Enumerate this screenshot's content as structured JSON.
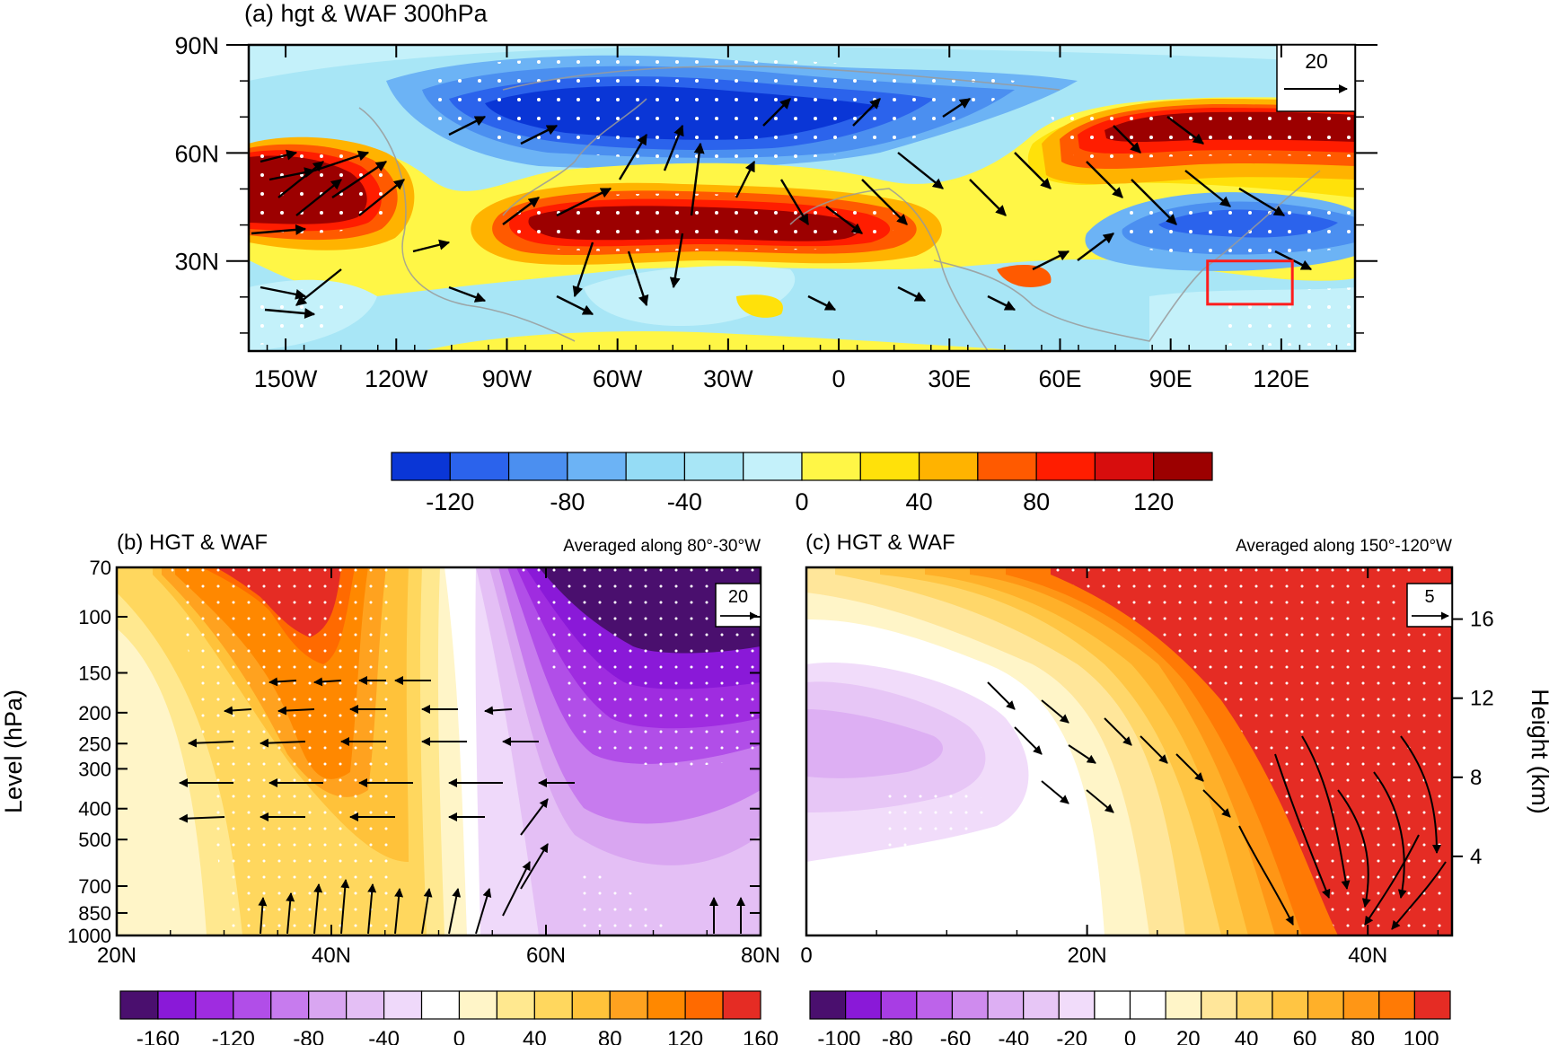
{
  "chart_data": [
    {
      "type": "heatmap",
      "panel": "a",
      "title": "(a) hgt & WAF 300hPa",
      "x_ticks": [
        "150W",
        "120W",
        "90W",
        "60W",
        "30W",
        "0",
        "30E",
        "60E",
        "90E",
        "120E"
      ],
      "x_values": [
        -150,
        -120,
        -90,
        -60,
        -30,
        0,
        30,
        60,
        90,
        120
      ],
      "xlim": [
        -160,
        140
      ],
      "y_ticks": [
        "90N",
        "60N",
        "30N"
      ],
      "y_values": [
        90,
        60,
        30
      ],
      "ylim": [
        5,
        90
      ],
      "vector_reference": "20",
      "colorbar": {
        "ticks": [
          "-120",
          "-80",
          "-40",
          "0",
          "40",
          "80",
          "120"
        ],
        "tick_values": [
          -120,
          -80,
          -40,
          0,
          40,
          80,
          120
        ],
        "levels": [
          -140,
          -120,
          -100,
          -80,
          -60,
          -40,
          -20,
          0,
          20,
          40,
          60,
          80,
          100,
          120,
          140
        ],
        "colors": [
          "#0a36d6",
          "#2b63ec",
          "#4b8ff0",
          "#6cb3f5",
          "#95dcf5",
          "#a8e6f6",
          "#c4f1fa",
          "#fff646",
          "#ffe10a",
          "#ffb300",
          "#ff5a00",
          "#ff1d00",
          "#d70d0d",
          "#9c0000"
        ]
      }
    },
    {
      "type": "heatmap",
      "panel": "b",
      "title": "(b) HGT & WAF",
      "subtitle": "Averaged along 80°-30°W",
      "x_ticks": [
        "20N",
        "40N",
        "60N",
        "80N"
      ],
      "x_values": [
        20,
        40,
        60,
        80
      ],
      "y_ticks": [
        "70",
        "100",
        "150",
        "200",
        "250",
        "300",
        "400",
        "500",
        "700",
        "850",
        "1000"
      ],
      "y_values": [
        70,
        100,
        150,
        200,
        250,
        300,
        400,
        500,
        700,
        850,
        1000
      ],
      "ylabel": "Level (hPa)",
      "vector_reference": "20",
      "colorbar": {
        "ticks": [
          "-160",
          "-120",
          "-80",
          "-40",
          "0",
          "40",
          "80",
          "120",
          "160"
        ],
        "tick_values": [
          -160,
          -120,
          -80,
          -40,
          0,
          40,
          80,
          120,
          160
        ],
        "colors": [
          "#4a0f6e",
          "#8a19d8",
          "#9f2ce0",
          "#b14ee8",
          "#c77bee",
          "#d9a6f1",
          "#e4bff5",
          "#efd9fa",
          "#ffffff",
          "#fff5c8",
          "#ffe88f",
          "#ffd75e",
          "#ffc23a",
          "#ffa21f",
          "#ff8800",
          "#ff6a00",
          "#e52c24"
        ]
      }
    },
    {
      "type": "heatmap",
      "panel": "c",
      "title": "(c) HGT & WAF",
      "subtitle": "Averaged along 150°-120°W",
      "x_ticks": [
        "0",
        "20N",
        "40N"
      ],
      "x_values": [
        0,
        20,
        40
      ],
      "y2_ticks": [
        "16",
        "12",
        "8",
        "4"
      ],
      "y2_values": [
        16,
        12,
        8,
        4
      ],
      "y2label": "Height (km)",
      "vector_reference": "5",
      "colorbar": {
        "ticks": [
          "-100",
          "-80",
          "-60",
          "-40",
          "-20",
          "0",
          "20",
          "40",
          "60",
          "80",
          "100"
        ],
        "tick_values": [
          -100,
          -80,
          -60,
          -40,
          -20,
          0,
          20,
          40,
          60,
          80,
          100
        ],
        "colors": [
          "#4a0f6e",
          "#8a19d8",
          "#a83de4",
          "#bd63ea",
          "#cf8bee",
          "#ddaff3",
          "#e7c6f6",
          "#f1dcfa",
          "#ffffff",
          "#ffffff",
          "#fff5c8",
          "#ffe69a",
          "#ffd76a",
          "#ffc543",
          "#ffb029",
          "#ff9615",
          "#ff7a05",
          "#e52c24"
        ]
      }
    }
  ]
}
